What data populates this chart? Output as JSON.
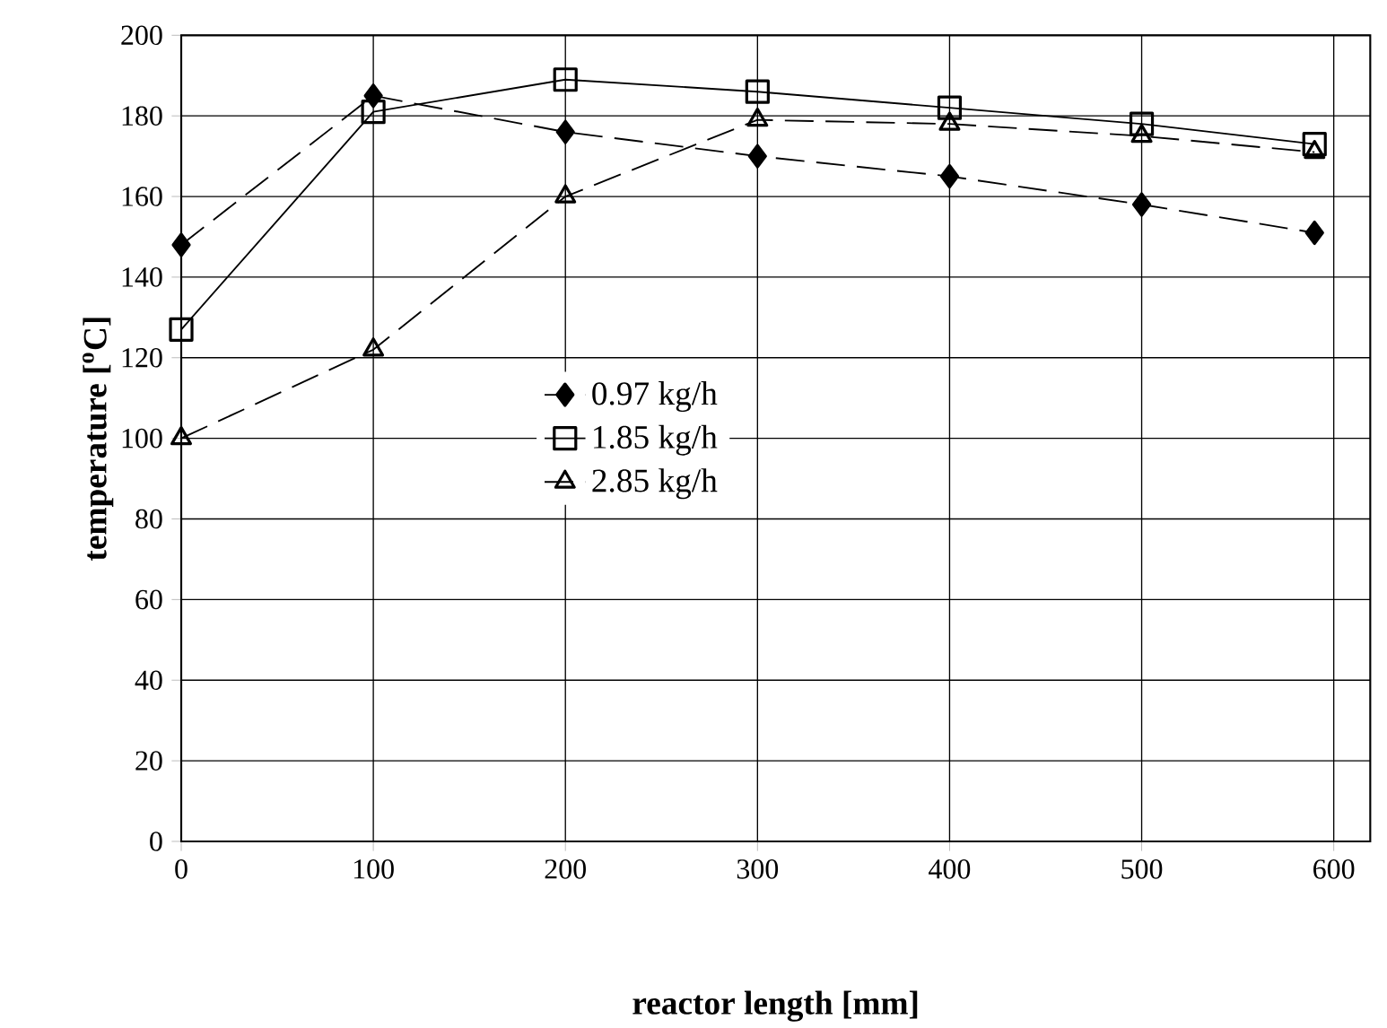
{
  "chart_data": {
    "type": "line",
    "xlabel": "reactor length [mm]",
    "ylabel": "temperature [$^{o}$C]",
    "xlim": [
      0,
      619
    ],
    "xticks": [
      0,
      100,
      200,
      300,
      400,
      500,
      600
    ],
    "ylim": [
      0,
      200
    ],
    "yticks": [
      0,
      20,
      40,
      60,
      80,
      100,
      120,
      140,
      160,
      180,
      200
    ],
    "grid": true,
    "legend": "center",
    "x": [
      0,
      100,
      200,
      300,
      400,
      500,
      590
    ],
    "series": [
      {
        "name": "0.97 kg/h",
        "color": "#000000",
        "marker": "diamond",
        "line_style": "dashed",
        "values": [
          148,
          185,
          176,
          170,
          165,
          158,
          151
        ]
      },
      {
        "name": "1.85 kg/h",
        "color": "#000000",
        "marker": "square",
        "line_style": "solid",
        "values": [
          127,
          181,
          189,
          186,
          182,
          178,
          173
        ]
      },
      {
        "name": "2.85  kg/h",
        "color": "#000000",
        "marker": "triangle",
        "line_style": "dashed",
        "values": [
          100,
          122,
          160,
          179,
          178,
          175,
          171
        ]
      }
    ]
  }
}
